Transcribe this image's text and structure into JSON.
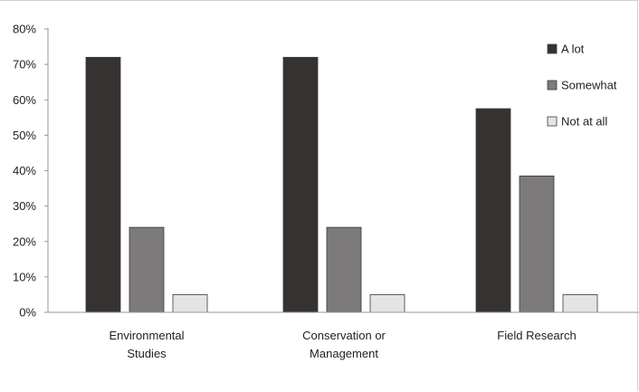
{
  "chart_data": {
    "type": "bar",
    "title": "",
    "xlabel": "",
    "ylabel": "",
    "categories": [
      [
        "Environmental",
        "Studies"
      ],
      [
        "Conservation or",
        "Management"
      ],
      [
        "Field Research"
      ]
    ],
    "series": [
      {
        "name": "A lot",
        "values": [
          72,
          72,
          57.5
        ],
        "color": "#363232"
      },
      {
        "name": "Somewhat",
        "values": [
          24,
          24,
          38.5
        ],
        "color": "#7c7a7a"
      },
      {
        "name": "Not at all",
        "values": [
          5,
          5,
          5
        ],
        "color": "#e4e4e4"
      }
    ],
    "ylim": [
      0,
      80
    ],
    "yticks": [
      0,
      10,
      20,
      30,
      40,
      50,
      60,
      70,
      80
    ],
    "ytick_labels": [
      "0%",
      "10%",
      "20%",
      "30%",
      "40%",
      "50%",
      "60%",
      "70%",
      "80%"
    ],
    "grid": false,
    "legend": "top-right"
  }
}
